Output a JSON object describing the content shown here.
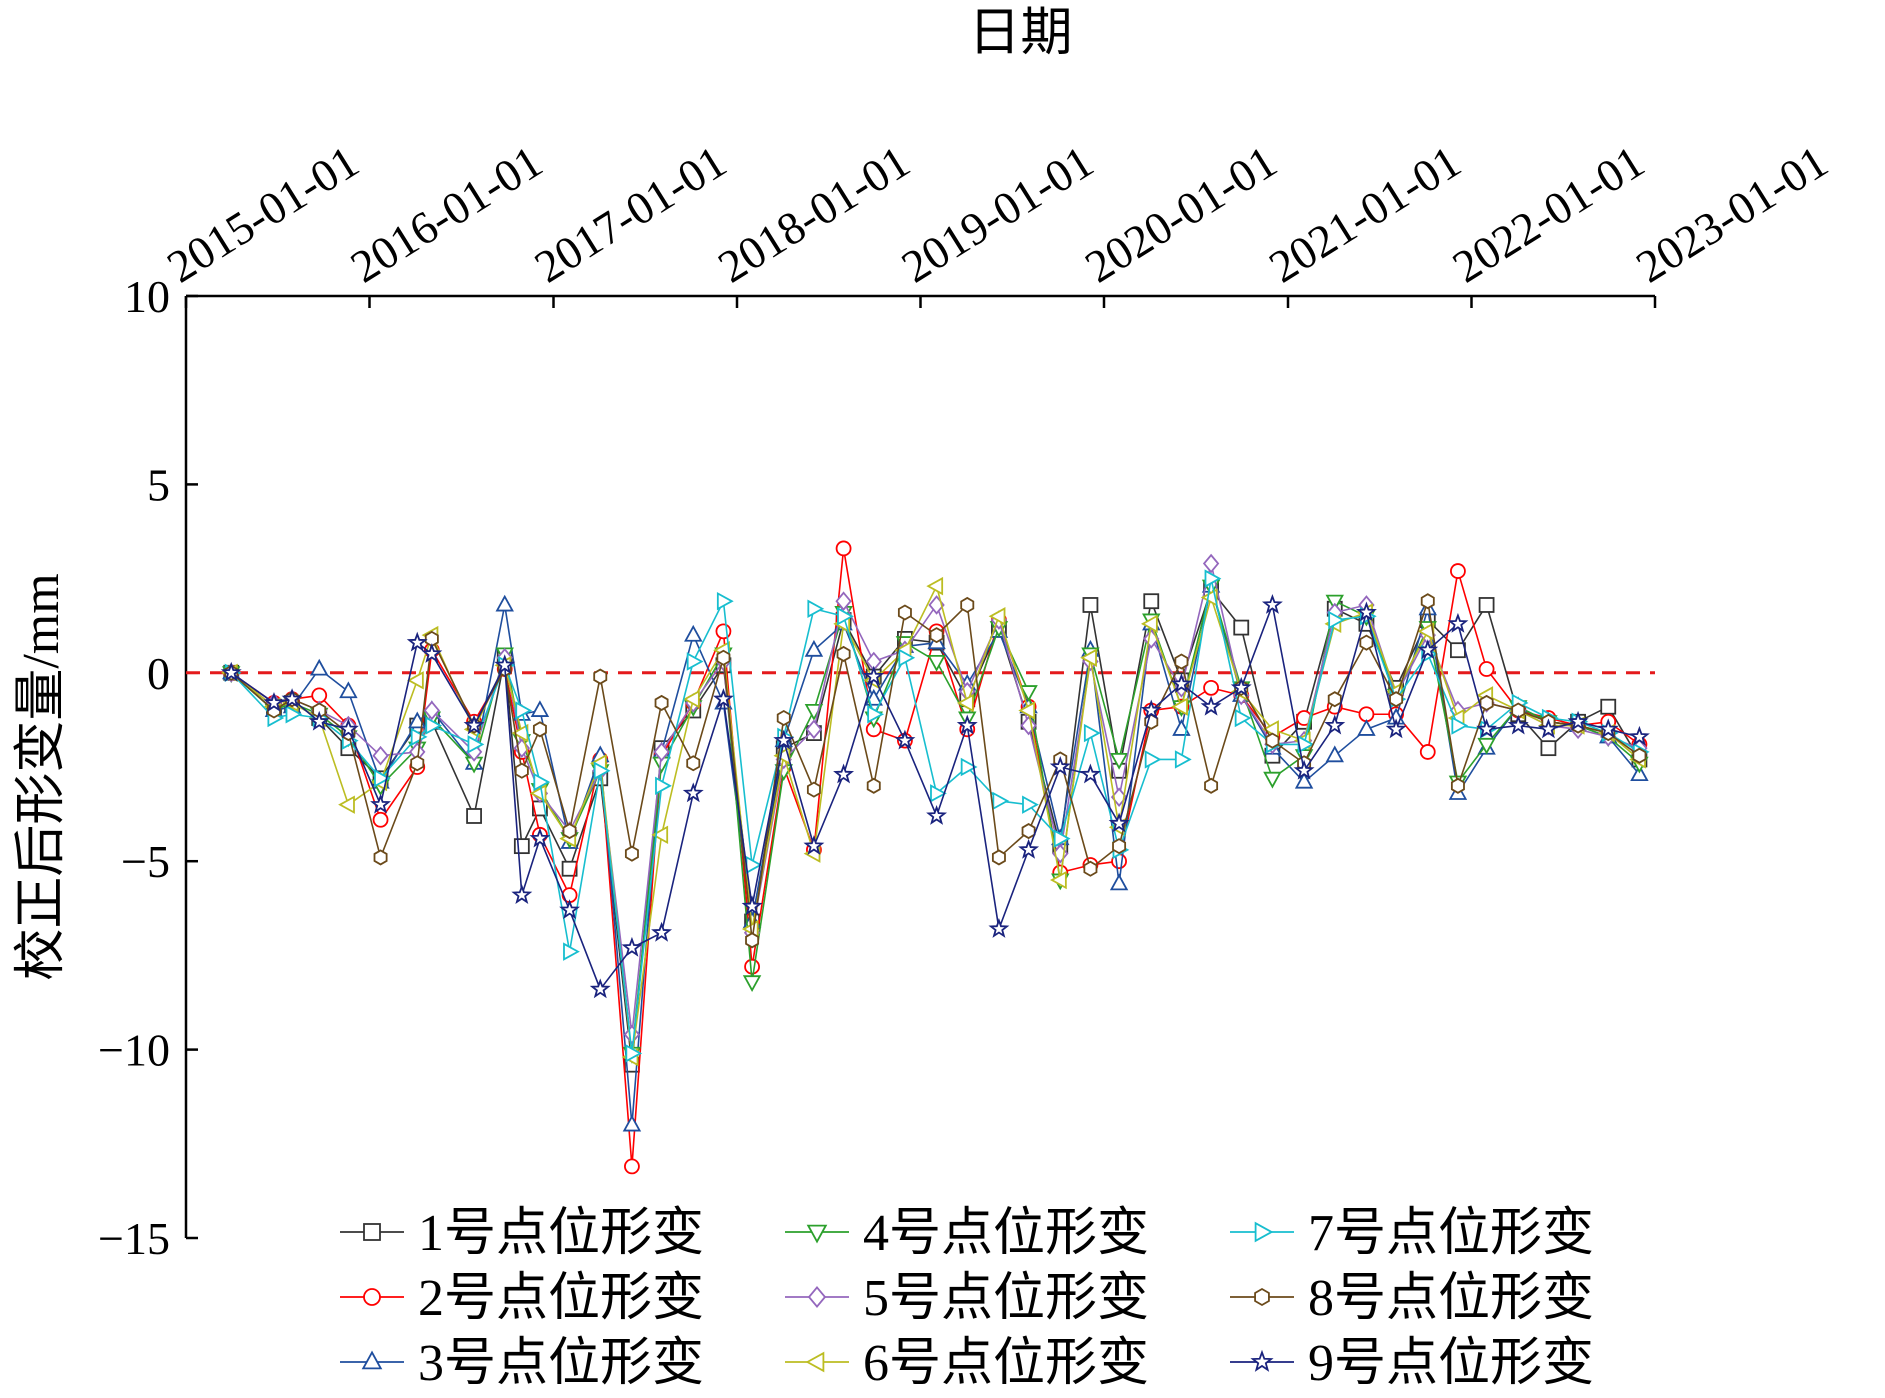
{
  "chart_data": {
    "type": "line",
    "title": "",
    "xlabel": "日期",
    "ylabel": "校正后形变量/mm",
    "x_axis_position": "top",
    "x_ticks": [
      "2015-01-01",
      "2016-01-01",
      "2017-01-01",
      "2018-01-01",
      "2019-01-01",
      "2020-01-01",
      "2021-01-01",
      "2022-01-01",
      "2023-01-01"
    ],
    "xlim": [
      "2015-01-01",
      "2023-01-01"
    ],
    "y_ticks": [
      10,
      5,
      0,
      -5,
      -10,
      -15
    ],
    "y_tick_labels": [
      "10",
      "5",
      "0",
      "−5",
      "−10",
      "−15"
    ],
    "ylim": [
      -15,
      10
    ],
    "grid": false,
    "legend_position": "bottom",
    "reference_line": {
      "y": 0,
      "color": "#e41a1c",
      "style": "dashed"
    },
    "x": [
      "2015-04-01",
      "2015-06-25",
      "2015-07-31",
      "2015-09-23",
      "2015-11-20",
      "2016-01-23",
      "2016-04-05",
      "2016-05-04",
      "2016-07-27",
      "2016-09-26",
      "2016-10-30",
      "2016-12-05",
      "2017-02-02",
      "2017-04-04",
      "2017-06-06",
      "2017-08-04",
      "2017-10-06",
      "2017-12-05",
      "2018-01-31",
      "2018-04-04",
      "2018-06-03",
      "2018-08-01",
      "2018-09-30",
      "2018-12-01",
      "2019-02-02",
      "2019-04-04",
      "2019-06-06",
      "2019-08-04",
      "2019-10-06",
      "2019-12-05",
      "2020-01-31",
      "2020-04-04",
      "2020-06-03",
      "2020-08-01",
      "2020-09-30",
      "2020-12-01",
      "2021-02-02",
      "2021-04-04",
      "2021-06-06",
      "2021-08-04",
      "2021-10-06",
      "2021-12-05",
      "2022-01-31",
      "2022-04-04",
      "2022-06-03",
      "2022-08-01",
      "2022-09-30",
      "2022-12-01"
    ],
    "series": [
      {
        "name": "1号点位形变",
        "color": "#333333",
        "marker": "square",
        "values": [
          0,
          -0.9,
          -0.8,
          -1.2,
          -2.0,
          -2.8,
          -1.4,
          -1.3,
          -3.8,
          0.4,
          -4.6,
          -3.6,
          -5.2,
          -2.8,
          -10.4,
          -2.0,
          -1.0,
          0.2,
          -6.6,
          -2.0,
          -1.6,
          1.4,
          -0.1,
          0.9,
          0.8,
          -0.7,
          1.2,
          -1.3,
          -4.6,
          1.8,
          -2.6,
          1.9,
          -0.2,
          2.2,
          1.2,
          -2.2,
          -1.3,
          1.7,
          1.3,
          -0.4,
          1.4,
          0.6,
          1.8,
          -1.1,
          -2.0,
          -1.3,
          -0.9,
          -2.3
        ]
      },
      {
        "name": "2号点位形变",
        "color": "#ff0000",
        "marker": "circle",
        "values": [
          0,
          -0.8,
          -0.7,
          -0.6,
          -1.4,
          -3.9,
          -2.5,
          0.6,
          -1.3,
          0.1,
          -2.1,
          -4.3,
          -5.9,
          -2.3,
          -13.1,
          -2.2,
          -0.8,
          1.1,
          -7.8,
          -2.5,
          -4.7,
          3.3,
          -1.5,
          -1.8,
          1.1,
          -1.5,
          1.4,
          -0.9,
          -5.3,
          -5.1,
          -5.0,
          -1.0,
          -0.9,
          -0.4,
          -0.6,
          -1.7,
          -1.2,
          -0.9,
          -1.1,
          -1.1,
          -2.1,
          2.7,
          0.1,
          -1.0,
          -1.2,
          -1.4,
          -1.3,
          -1.9
        ]
      },
      {
        "name": "3号点位形变",
        "color": "#1f4e9e",
        "marker": "triangle-up",
        "values": [
          0,
          -1.0,
          -0.9,
          0.1,
          -0.5,
          -2.9,
          -1.3,
          -1.0,
          -2.4,
          1.8,
          -1.1,
          -1.0,
          -4.5,
          -2.2,
          -12.0,
          -2.1,
          1.0,
          -0.8,
          -6.6,
          -1.8,
          0.6,
          1.3,
          -0.7,
          0.7,
          0.8,
          -0.3,
          1.1,
          -0.9,
          -4.4,
          0.6,
          -5.6,
          1.3,
          -1.5,
          2.3,
          -0.6,
          -2.0,
          -2.9,
          -2.2,
          -1.5,
          -1.2,
          1.7,
          -3.2,
          -2.0,
          -0.9,
          -1.3,
          -1.4,
          -1.7,
          -2.7
        ]
      },
      {
        "name": "4号点位形变",
        "color": "#2ca02c",
        "marker": "triangle-down",
        "values": [
          0,
          -1.0,
          -0.8,
          -1.1,
          -1.7,
          -3.0,
          -2.0,
          -1.2,
          -2.4,
          0.5,
          -1.8,
          -3.1,
          -4.4,
          -2.6,
          -10.1,
          -2.4,
          -0.9,
          0.5,
          -8.2,
          -2.6,
          -1.0,
          1.6,
          -1.2,
          0.8,
          0.3,
          -1.2,
          1.2,
          -0.5,
          -5.5,
          0.5,
          -2.3,
          1.4,
          -0.9,
          2.3,
          -0.4,
          -2.8,
          -2.2,
          1.9,
          1.5,
          -0.6,
          1.2,
          -2.9,
          -1.9,
          -0.9,
          -1.3,
          -1.4,
          -1.7,
          -2.4
        ]
      },
      {
        "name": "5号点位形变",
        "color": "#9467bd",
        "marker": "diamond",
        "values": [
          0,
          -0.8,
          -0.7,
          -1.0,
          -1.4,
          -2.2,
          -2.1,
          -1.0,
          -2.1,
          0.4,
          -2.0,
          -3.2,
          -4.2,
          -2.6,
          -9.6,
          -2.1,
          -0.8,
          0.3,
          -6.9,
          -2.3,
          -1.5,
          1.9,
          0.3,
          0.6,
          1.8,
          -0.5,
          1.4,
          -1.4,
          -4.8,
          0.3,
          -3.3,
          0.9,
          -0.4,
          2.9,
          -0.6,
          -1.9,
          -1.8,
          1.6,
          1.8,
          -0.6,
          1.0,
          -1.0,
          -0.8,
          -1.0,
          -1.4,
          -1.5,
          -1.7,
          -2.0
        ]
      },
      {
        "name": "6号点位形变",
        "color": "#bcbd22",
        "marker": "triangle-left",
        "values": [
          0,
          -0.9,
          -0.8,
          -1.2,
          -3.5,
          -2.9,
          -0.2,
          1.0,
          -1.5,
          0.2,
          -1.6,
          -3.2,
          -4.4,
          -2.4,
          -10.2,
          -4.3,
          -0.7,
          0.6,
          -6.8,
          -2.2,
          -4.8,
          1.3,
          -0.2,
          0.6,
          2.3,
          -0.8,
          1.5,
          -1.0,
          -5.5,
          0.4,
          -4.1,
          1.3,
          -0.9,
          2.0,
          -0.5,
          -1.5,
          -1.8,
          1.3,
          1.6,
          -0.5,
          1.1,
          -1.2,
          -0.6,
          -1.0,
          -1.4,
          -1.4,
          -1.6,
          -2.3
        ]
      },
      {
        "name": "7号点位形变",
        "color": "#17becf",
        "marker": "triangle-right",
        "values": [
          0,
          -1.2,
          -1.1,
          -1.2,
          -1.8,
          -2.8,
          -1.7,
          -1.4,
          -1.9,
          0.2,
          -1.0,
          -2.9,
          -7.4,
          -2.6,
          -10.1,
          -3.0,
          0.3,
          1.9,
          -5.1,
          -1.7,
          1.7,
          1.5,
          -1.1,
          0.4,
          -3.2,
          -2.5,
          -3.4,
          -3.5,
          -4.4,
          -1.6,
          -4.7,
          -2.3,
          -2.3,
          2.5,
          -1.2,
          -1.9,
          -1.9,
          1.4,
          1.5,
          -0.7,
          0.5,
          -1.4,
          -1.5,
          -0.8,
          -1.2,
          -1.3,
          -1.6,
          -2.1
        ]
      },
      {
        "name": "8号点位形变",
        "color": "#6b4a1a",
        "marker": "hexagon",
        "values": [
          0,
          -1.0,
          -0.7,
          -1.0,
          -1.6,
          -4.9,
          -2.4,
          0.9,
          -1.4,
          0.1,
          -2.6,
          -1.5,
          -4.2,
          -0.1,
          -4.8,
          -0.8,
          -2.4,
          0.4,
          -7.1,
          -1.2,
          -3.1,
          0.5,
          -3.0,
          1.6,
          1.0,
          1.8,
          -4.9,
          -4.2,
          -2.3,
          -5.2,
          -4.6,
          -1.3,
          0.3,
          -3.0,
          -0.4,
          -1.8,
          -2.4,
          -0.7,
          0.8,
          -0.7,
          1.9,
          -3.0,
          -0.8,
          -1.0,
          -1.3,
          -1.4,
          -1.6,
          -2.2
        ]
      },
      {
        "name": "9号点位形变",
        "color": "#1a237e",
        "marker": "star",
        "values": [
          0,
          -0.8,
          -0.7,
          -1.3,
          -1.5,
          -3.5,
          0.8,
          0.5,
          -1.4,
          0.2,
          -5.9,
          -4.4,
          -6.3,
          -8.4,
          -7.3,
          -6.9,
          -3.2,
          -0.7,
          -6.2,
          -1.8,
          -4.6,
          -2.7,
          -0.1,
          -1.8,
          -3.8,
          -1.4,
          -6.8,
          -4.7,
          -2.5,
          -2.7,
          -4.0,
          -1.0,
          -0.3,
          -0.9,
          -0.4,
          1.8,
          -2.6,
          -1.4,
          1.6,
          -1.5,
          0.6,
          1.3,
          -1.5,
          -1.4,
          -1.5,
          -1.3,
          -1.5,
          -1.7
        ]
      }
    ]
  }
}
